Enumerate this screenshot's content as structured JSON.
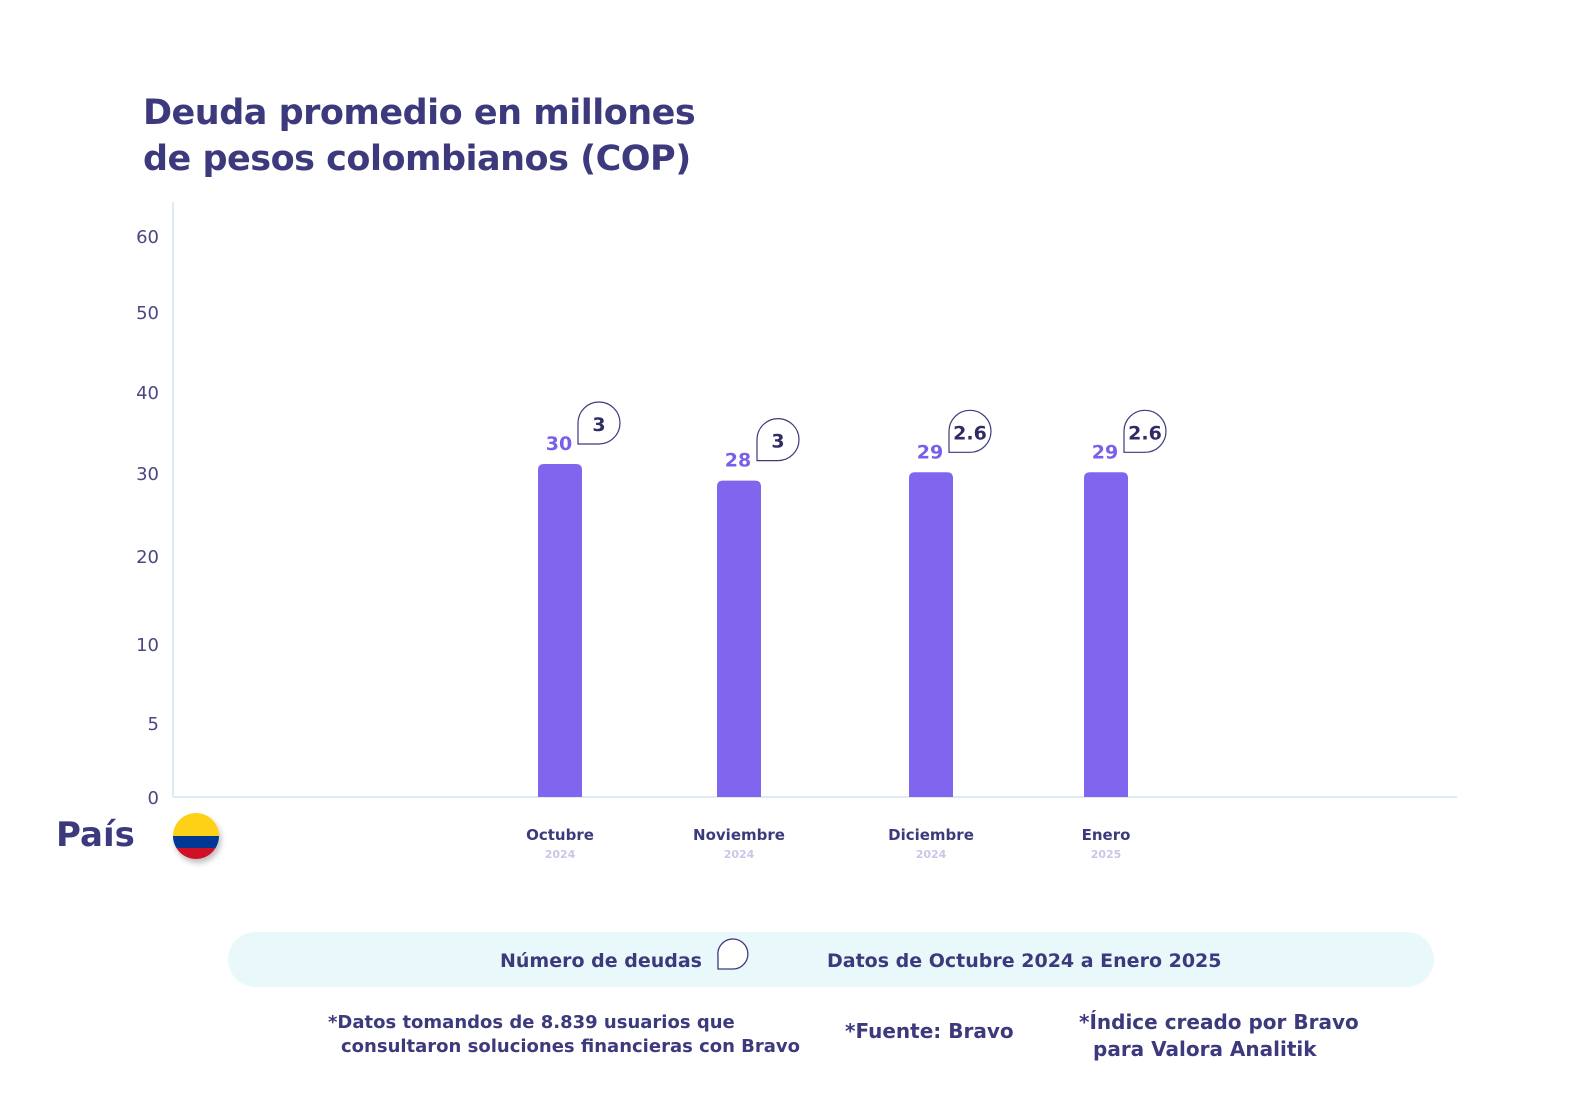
{
  "chart_data": {
    "type": "bar",
    "title_lines": [
      "Deuda promedio en millones",
      "de pesos colombianos (COP)"
    ],
    "categories": [
      {
        "name": "Octubre",
        "year": "2024"
      },
      {
        "name": "Noviembre",
        "year": "2024"
      },
      {
        "name": "Diciembre",
        "year": "2024"
      },
      {
        "name": "Enero",
        "year": "2025"
      }
    ],
    "values": [
      30,
      28,
      29,
      29
    ],
    "debt_counts": [
      "3",
      "3",
      "2.6",
      "2.6"
    ],
    "y_ticks": [
      0,
      5,
      10,
      20,
      30,
      40,
      50,
      60
    ],
    "ylim": [
      0,
      60
    ],
    "grid": false,
    "bar_color": "#8066ee"
  },
  "country": {
    "label": "País",
    "flag": "colombia-flag",
    "flag_colors": [
      "#fcd116",
      "#003893",
      "#ce1126"
    ]
  },
  "legend": {
    "count_label": "Número de deudas",
    "period_label": "Datos de Octubre 2024 a Enero 2025"
  },
  "notes": {
    "data_line1": "*Datos tomandos de 8.839 usuarios que",
    "data_line2": "consultaron soluciones financieras con Bravo",
    "source": "*Fuente: Bravo",
    "index_line1": "*Índice creado por Bravo",
    "index_line2": "para Valora Analitik"
  }
}
